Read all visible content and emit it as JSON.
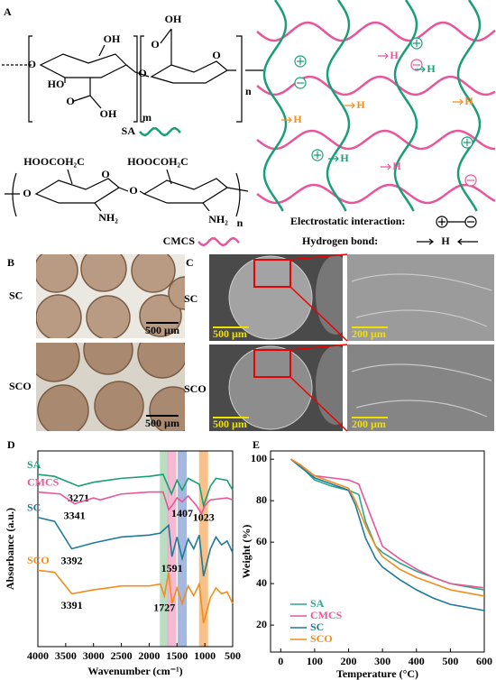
{
  "panel_a": {
    "label": "A",
    "sa_structure_labels": [
      "O",
      "OH",
      "HO",
      "O",
      "OH",
      "m",
      "O",
      "OH",
      "O",
      "O",
      "n"
    ],
    "cmcs_structure_labels": [
      "HOOCOH₂C",
      "HOOCOH₂C",
      "O",
      "O",
      "O",
      "NH₂",
      "NH₂",
      "n"
    ],
    "sa_name": "SA",
    "cmcs_name": "CMCS",
    "network_h": "H",
    "electrostatic_label": "Electrostatic interaction:",
    "hydrogen_bond_label": "Hydrogen bond:"
  },
  "panel_b": {
    "label": "B",
    "rows": [
      "SC",
      "SCO"
    ],
    "scale_bar": "500 µm"
  },
  "panel_c": {
    "label": "C",
    "rows": [
      "SC",
      "SCO"
    ],
    "scale_bars": [
      "500 µm",
      "200 µm"
    ]
  },
  "chart_data": [
    {
      "type": "line",
      "panel_label": "D",
      "x_label": "Wavenumber (cm⁻¹)",
      "y_label": "Absorbance (a.u.)",
      "xlim": [
        4000,
        500
      ],
      "xticks": [
        4000,
        3500,
        3000,
        2500,
        2000,
        1500,
        1000,
        500
      ],
      "ylim": [
        0,
        100
      ],
      "legend": "inline",
      "bands": [
        {
          "x": 1727,
          "color": "#a6d4b0"
        },
        {
          "x": 1591,
          "color": "#f4a6c8"
        },
        {
          "x": 1407,
          "color": "#8fa8d8"
        },
        {
          "x": 1023,
          "color": "#f5b26b"
        }
      ],
      "series": [
        {
          "name": "SA",
          "color": "#1a9e77",
          "peaks": [
            3271,
            1023
          ],
          "x": [
            4000,
            3700,
            3271,
            3000,
            2500,
            2000,
            1750,
            1600,
            1500,
            1407,
            1300,
            1100,
            1023,
            900,
            800,
            600,
            500
          ],
          "values": [
            88,
            87,
            82,
            84,
            86,
            87,
            88,
            78,
            85,
            80,
            86,
            83,
            72,
            82,
            86,
            85,
            80
          ]
        },
        {
          "name": "CMCS",
          "color": "#e8559c",
          "peaks": [
            3341,
            1407
          ],
          "x": [
            4000,
            3600,
            3341,
            3000,
            2880,
            2500,
            2000,
            1750,
            1650,
            1591,
            1500,
            1407,
            1300,
            1150,
            1060,
            1000,
            900,
            600,
            500
          ],
          "values": [
            79,
            78,
            73,
            76,
            75,
            78,
            79,
            79,
            70,
            72,
            76,
            74,
            77,
            72,
            68,
            72,
            75,
            76,
            75
          ]
        },
        {
          "name": "SC",
          "color": "#1f7a9a",
          "peaks": [
            3392,
            1591
          ],
          "x": [
            4000,
            3700,
            3392,
            3000,
            2500,
            2000,
            1800,
            1650,
            1591,
            1500,
            1407,
            1300,
            1200,
            1100,
            1023,
            900,
            800,
            700,
            600,
            500
          ],
          "values": [
            66,
            64,
            50,
            53,
            56,
            57,
            58,
            62,
            46,
            56,
            45,
            55,
            50,
            57,
            36,
            50,
            56,
            52,
            54,
            48
          ]
        },
        {
          "name": "SCO",
          "color": "#f28c1c",
          "peaks": [
            3391,
            1727
          ],
          "x": [
            4000,
            3700,
            3391,
            3000,
            2500,
            2000,
            1800,
            1727,
            1650,
            1591,
            1500,
            1407,
            1300,
            1200,
            1100,
            1023,
            900,
            800,
            700,
            600,
            500
          ],
          "values": [
            39,
            38,
            27,
            29,
            31,
            31,
            32,
            26,
            38,
            22,
            30,
            22,
            31,
            26,
            32,
            12,
            25,
            30,
            27,
            28,
            22
          ]
        }
      ]
    },
    {
      "type": "line",
      "panel_label": "E",
      "x_label": "Temperature (°C)",
      "y_label": "Weight (%)",
      "xlim": [
        -30,
        600
      ],
      "xticks": [
        0,
        100,
        200,
        300,
        400,
        500,
        600
      ],
      "ylim": [
        7,
        104
      ],
      "yticks": [
        20,
        40,
        60,
        80,
        100
      ],
      "legend": "lower left",
      "series": [
        {
          "name": "SA",
          "color": "#2ca58d",
          "x": [
            30,
            50,
            100,
            150,
            200,
            230,
            250,
            280,
            300,
            350,
            400,
            450,
            500,
            600
          ],
          "values": [
            100,
            98,
            90,
            87,
            85,
            83,
            70,
            58,
            55,
            50,
            46,
            43,
            40,
            37
          ]
        },
        {
          "name": "CMCS",
          "color": "#e8559c",
          "x": [
            30,
            60,
            100,
            150,
            200,
            230,
            260,
            300,
            350,
            400,
            450,
            500,
            600
          ],
          "values": [
            100,
            97,
            92,
            91,
            90,
            88,
            75,
            58,
            52,
            47,
            43,
            40,
            38
          ]
        },
        {
          "name": "SC",
          "color": "#1f7a9a",
          "x": [
            30,
            60,
            100,
            150,
            200,
            220,
            250,
            280,
            300,
            350,
            400,
            450,
            500,
            600
          ],
          "values": [
            100,
            96,
            91,
            88,
            85,
            78,
            62,
            52,
            48,
            42,
            37,
            33,
            30,
            27
          ]
        },
        {
          "name": "SCO",
          "color": "#f28c1c",
          "x": [
            30,
            60,
            100,
            150,
            200,
            220,
            250,
            280,
            300,
            350,
            400,
            450,
            500,
            600
          ],
          "values": [
            100,
            97,
            92,
            89,
            86,
            80,
            68,
            58,
            53,
            47,
            43,
            40,
            37,
            34
          ]
        }
      ]
    }
  ]
}
